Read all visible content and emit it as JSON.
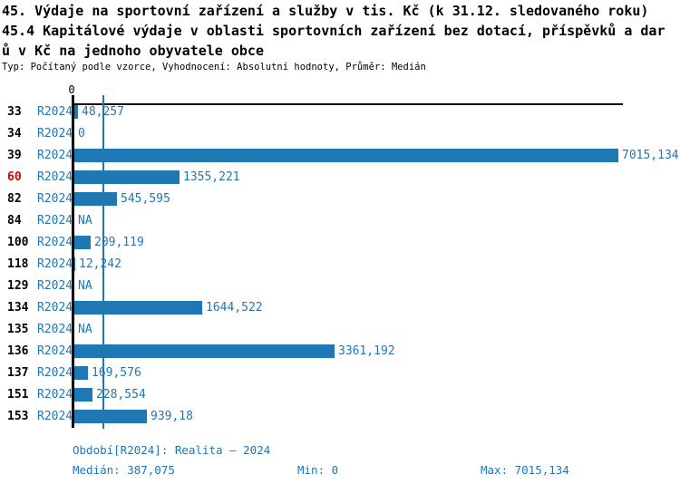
{
  "title": {
    "lines": [
      "45. Výdaje na sportovní zařízení a služby v tis. Kč (k 31.12. sledovaného roku)",
      "45.4 Kapitálové výdaje v oblasti sportovních zařízení bez dotací, příspěvků a dar",
      "ů v Kč na jednoho obyvatele obce"
    ]
  },
  "subtitle": "Typ: Počítaný podle vzorce, Vyhodnocení: Absolutní hodnoty, Průměr: Medián",
  "axis": {
    "zero_label": "0"
  },
  "colors": {
    "bar_blue": "#1f77b4",
    "highlight_red": "#e00000",
    "axis_black": "#000000"
  },
  "chart_data": {
    "type": "bar",
    "orientation": "horizontal",
    "series_name": "R2024",
    "categories": [
      "33",
      "34",
      "39",
      "60",
      "82",
      "84",
      "100",
      "118",
      "129",
      "134",
      "135",
      "136",
      "137",
      "151",
      "153"
    ],
    "values": [
      48.257,
      0,
      7015.134,
      1355.221,
      545.595,
      null,
      209.119,
      12.242,
      null,
      1644.522,
      null,
      3361.192,
      169.576,
      228.554,
      939.18
    ],
    "value_labels": [
      "48,257",
      "0",
      "7015,134",
      "1355,221",
      "545,595",
      "NA",
      "209,119",
      "12,242",
      "NA",
      "1644,522",
      "NA",
      "3361,192",
      "169,576",
      "228,554",
      "939,18"
    ],
    "highlighted_categories": [
      "60"
    ],
    "xlim": [
      0,
      7015.134
    ],
    "median_reference": 387.075,
    "grid": false,
    "legend": "none"
  },
  "footer": {
    "period": "Období[R2024]: Realita – 2024",
    "median": "Medián: 387,075",
    "min": "Min: 0",
    "max": "Max: 7015,134"
  }
}
